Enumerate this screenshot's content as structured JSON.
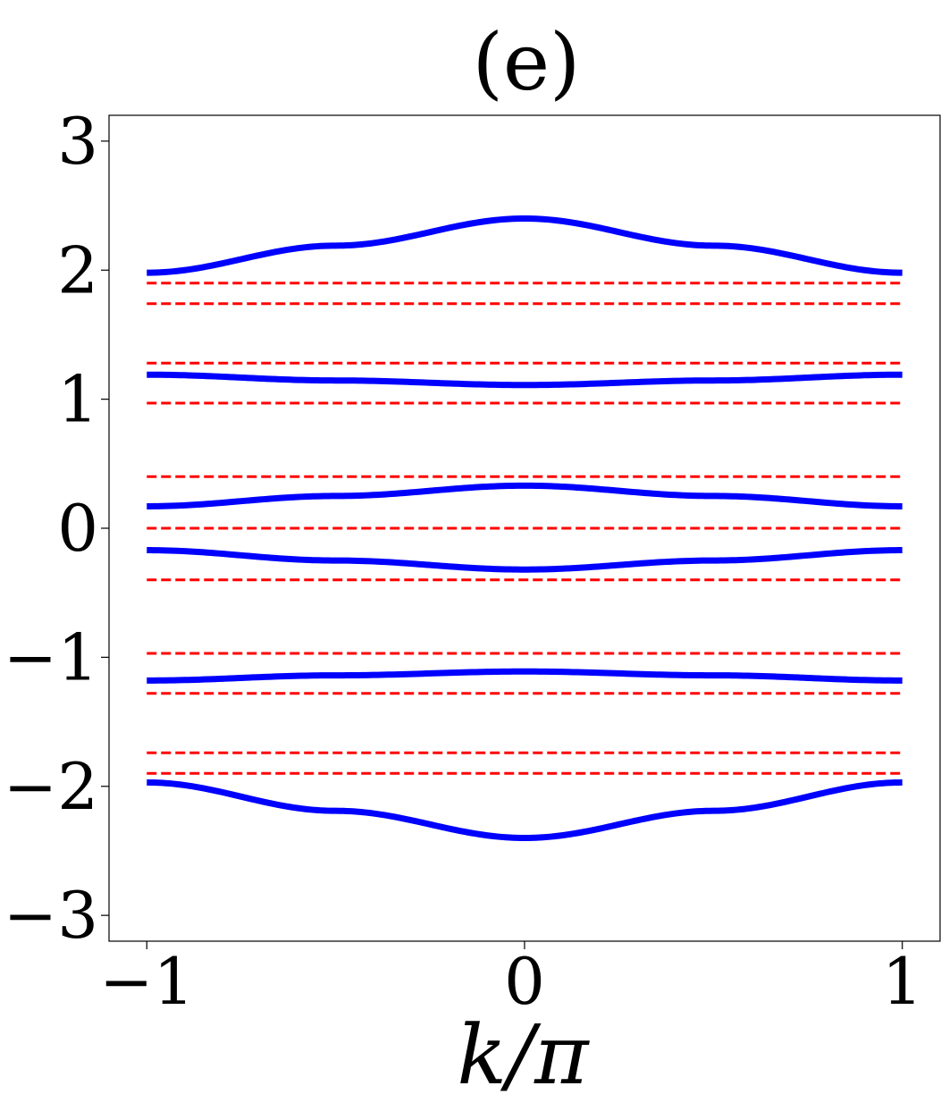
{
  "chart_data": {
    "type": "line",
    "title": "(e)",
    "xlabel": "k/π",
    "ylabel": "",
    "xlim": [
      -1.1,
      1.1
    ],
    "ylim": [
      -3.2,
      3.2
    ],
    "xticks": [
      -1,
      0,
      1
    ],
    "xtick_labels": [
      "−1",
      "0",
      "1"
    ],
    "yticks": [
      3,
      2,
      1,
      0,
      -1,
      -2,
      -3
    ],
    "ytick_labels": [
      "3",
      "2",
      "1",
      "0",
      "−1",
      "−2",
      "−3"
    ],
    "grid": false,
    "series": [
      {
        "style": "solid",
        "color": "#0000ff",
        "x": [
          -1,
          -0.5,
          0,
          0.5,
          1
        ],
        "y": [
          1.98,
          2.19,
          2.4,
          2.19,
          1.98
        ]
      },
      {
        "style": "solid",
        "color": "#0000ff",
        "x": [
          -1,
          -0.5,
          0,
          0.5,
          1
        ],
        "y": [
          1.19,
          1.145,
          1.11,
          1.145,
          1.19
        ]
      },
      {
        "style": "solid",
        "color": "#0000ff",
        "x": [
          -1,
          -0.5,
          0,
          0.5,
          1
        ],
        "y": [
          0.17,
          0.25,
          0.33,
          0.25,
          0.17
        ]
      },
      {
        "style": "solid",
        "color": "#0000ff",
        "x": [
          -1,
          -0.5,
          0,
          0.5,
          1
        ],
        "y": [
          -0.17,
          -0.25,
          -0.32,
          -0.25,
          -0.17
        ]
      },
      {
        "style": "solid",
        "color": "#0000ff",
        "x": [
          -1,
          -0.5,
          0,
          0.5,
          1
        ],
        "y": [
          -1.18,
          -1.14,
          -1.11,
          -1.14,
          -1.18
        ]
      },
      {
        "style": "solid",
        "color": "#0000ff",
        "x": [
          -1,
          -0.5,
          0,
          0.5,
          1
        ],
        "y": [
          -1.97,
          -2.19,
          -2.4,
          -2.19,
          -1.97
        ]
      },
      {
        "style": "dashed",
        "color": "#ff0000",
        "x": [
          -1,
          1
        ],
        "y": [
          1.9,
          1.9
        ]
      },
      {
        "style": "dashed",
        "color": "#ff0000",
        "x": [
          -1,
          1
        ],
        "y": [
          1.74,
          1.74
        ]
      },
      {
        "style": "dashed",
        "color": "#ff0000",
        "x": [
          -1,
          1
        ],
        "y": [
          1.28,
          1.28
        ]
      },
      {
        "style": "dashed",
        "color": "#ff0000",
        "x": [
          -1,
          1
        ],
        "y": [
          0.97,
          0.97
        ]
      },
      {
        "style": "dashed",
        "color": "#ff0000",
        "x": [
          -1,
          1
        ],
        "y": [
          0.4,
          0.4
        ]
      },
      {
        "style": "dashed",
        "color": "#ff0000",
        "x": [
          -1,
          1
        ],
        "y": [
          0.0,
          0.0
        ]
      },
      {
        "style": "dashed",
        "color": "#ff0000",
        "x": [
          -1,
          1
        ],
        "y": [
          -0.4,
          -0.4
        ]
      },
      {
        "style": "dashed",
        "color": "#ff0000",
        "x": [
          -1,
          1
        ],
        "y": [
          -0.97,
          -0.97
        ]
      },
      {
        "style": "dashed",
        "color": "#ff0000",
        "x": [
          -1,
          1
        ],
        "y": [
          -1.28,
          -1.28
        ]
      },
      {
        "style": "dashed",
        "color": "#ff0000",
        "x": [
          -1,
          1
        ],
        "y": [
          -1.74,
          -1.74
        ]
      },
      {
        "style": "dashed",
        "color": "#ff0000",
        "x": [
          -1,
          1
        ],
        "y": [
          -1.9,
          -1.9
        ]
      }
    ]
  }
}
